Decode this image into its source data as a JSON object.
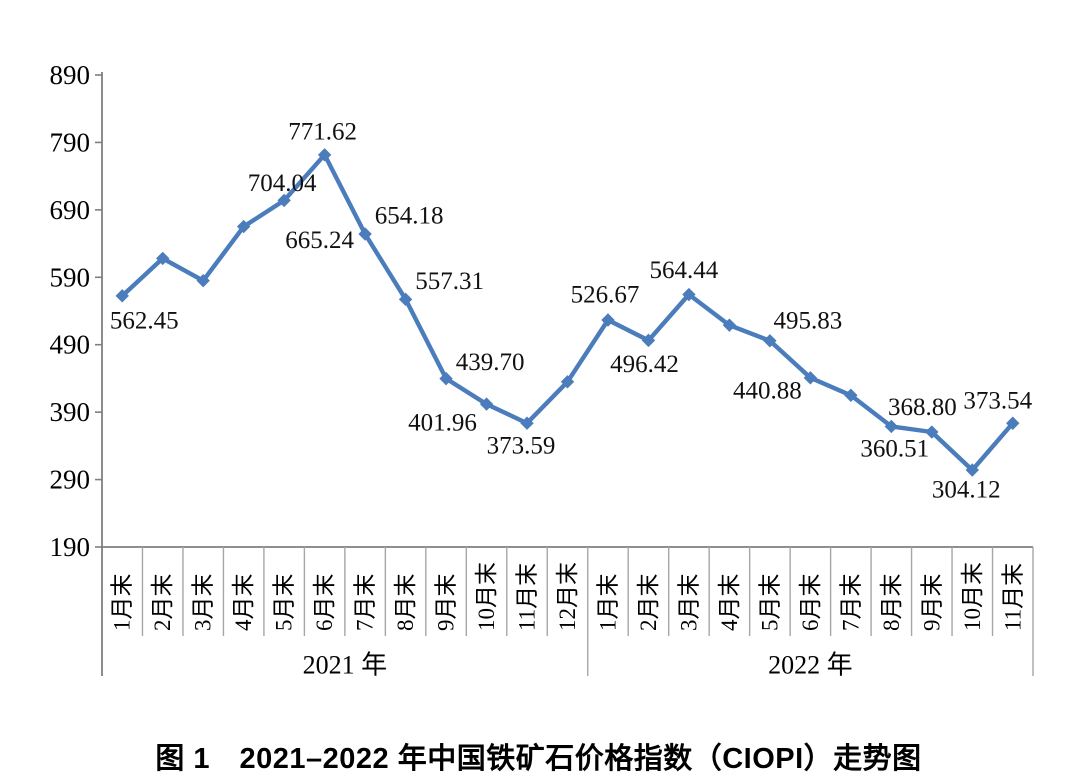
{
  "colors": {
    "line": "#4b7cbb",
    "marker": "#4b7cbb",
    "axis": "#7f7f7f",
    "separator": "#a6a6a6",
    "tick_label": "#000000",
    "data_label": "#111111",
    "background": "#ffffff"
  },
  "chart_data": {
    "type": "line",
    "title": "图 1　2021–2022 年中国铁矿石价格指数（CIOPI）走势图",
    "xlabel": "",
    "ylabel": "",
    "ylim": [
      190,
      890
    ],
    "y_ticks": [
      890,
      790,
      690,
      590,
      490,
      390,
      290,
      190
    ],
    "grid": false,
    "legend": "none",
    "categories": [
      "1月末",
      "2月末",
      "3月末",
      "4月末",
      "5月末",
      "6月末",
      "7月末",
      "8月末",
      "9月末",
      "10月末",
      "11月末",
      "12月末",
      "1月末",
      "2月末",
      "3月末",
      "4月末",
      "5月末",
      "6月末",
      "7月末",
      "8月末",
      "9月末",
      "10月末",
      "11月末"
    ],
    "year_groups": [
      {
        "label": "2021 年",
        "start": 0,
        "count": 12
      },
      {
        "label": "2022 年",
        "start": 12,
        "count": 11
      }
    ],
    "series": [
      {
        "name": "CIOPI",
        "points": [
          {
            "v": 562.45,
            "label": "562.45",
            "dx": 22,
            "dy": 25
          },
          {
            "v": 618,
            "label": null
          },
          {
            "v": 585,
            "label": null
          },
          {
            "v": 665.24,
            "label": "665.24",
            "dx": 76,
            "dy": 14
          },
          {
            "v": 704.04,
            "label": "704.04",
            "dx": -2,
            "dy": -17
          },
          {
            "v": 771.62,
            "label": "771.62",
            "dx": -2,
            "dy": -23
          },
          {
            "v": 654.18,
            "label": "654.18",
            "dx": 44,
            "dy": -18
          },
          {
            "v": 557.31,
            "label": "557.31",
            "dx": 44,
            "dy": -18
          },
          {
            "v": 439.7,
            "label": "439.70",
            "dx": 44,
            "dy": -16
          },
          {
            "v": 401.96,
            "label": "401.96",
            "dx": -44,
            "dy": 19
          },
          {
            "v": 373.59,
            "label": "373.59",
            "dx": -6,
            "dy": 23
          },
          {
            "v": 435,
            "label": null
          },
          {
            "v": 526.67,
            "label": "526.67",
            "dx": -3,
            "dy": -25
          },
          {
            "v": 496.42,
            "label": "496.42",
            "dx": -4,
            "dy": 24
          },
          {
            "v": 564.44,
            "label": "564.44",
            "dx": -5,
            "dy": -24
          },
          {
            "v": 519,
            "label": null
          },
          {
            "v": 495.83,
            "label": "495.83",
            "dx": 38,
            "dy": -20
          },
          {
            "v": 440.88,
            "label": "440.88",
            "dx": -43,
            "dy": 13
          },
          {
            "v": 415,
            "label": null
          },
          {
            "v": 368.8,
            "label": "368.80",
            "dx": 31,
            "dy": -19
          },
          {
            "v": 360.51,
            "label": "360.51",
            "dx": -37,
            "dy": 17
          },
          {
            "v": 304.12,
            "label": "304.12",
            "dx": -6,
            "dy": 20
          },
          {
            "v": 373.54,
            "label": "373.54",
            "dx": -15,
            "dy": -22
          }
        ]
      }
    ]
  }
}
